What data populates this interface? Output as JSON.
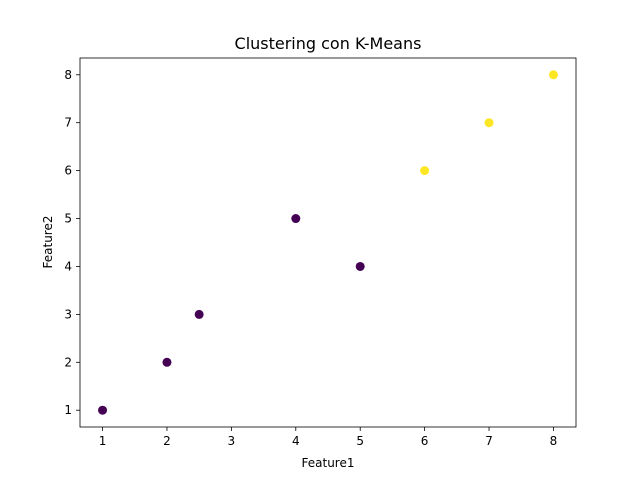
{
  "chart_data": {
    "type": "scatter",
    "title": "Clustering con K-Means",
    "xlabel": "Feature1",
    "ylabel": "Feature2",
    "xlim": [
      0.65,
      8.35
    ],
    "ylim": [
      0.65,
      8.35
    ],
    "xticks": [
      1,
      2,
      3,
      4,
      5,
      6,
      7,
      8
    ],
    "yticks": [
      1,
      2,
      3,
      4,
      5,
      6,
      7,
      8
    ],
    "grid": false,
    "points": [
      {
        "x": 1,
        "y": 1,
        "cluster": 0
      },
      {
        "x": 2,
        "y": 2,
        "cluster": 0
      },
      {
        "x": 2.5,
        "y": 3,
        "cluster": 0
      },
      {
        "x": 4,
        "y": 5,
        "cluster": 0
      },
      {
        "x": 5,
        "y": 4,
        "cluster": 0
      },
      {
        "x": 6,
        "y": 6,
        "cluster": 1
      },
      {
        "x": 7,
        "y": 7,
        "cluster": 1
      },
      {
        "x": 8,
        "y": 8,
        "cluster": 1
      }
    ],
    "cluster_colors": [
      "#440154",
      "#fde725"
    ]
  }
}
